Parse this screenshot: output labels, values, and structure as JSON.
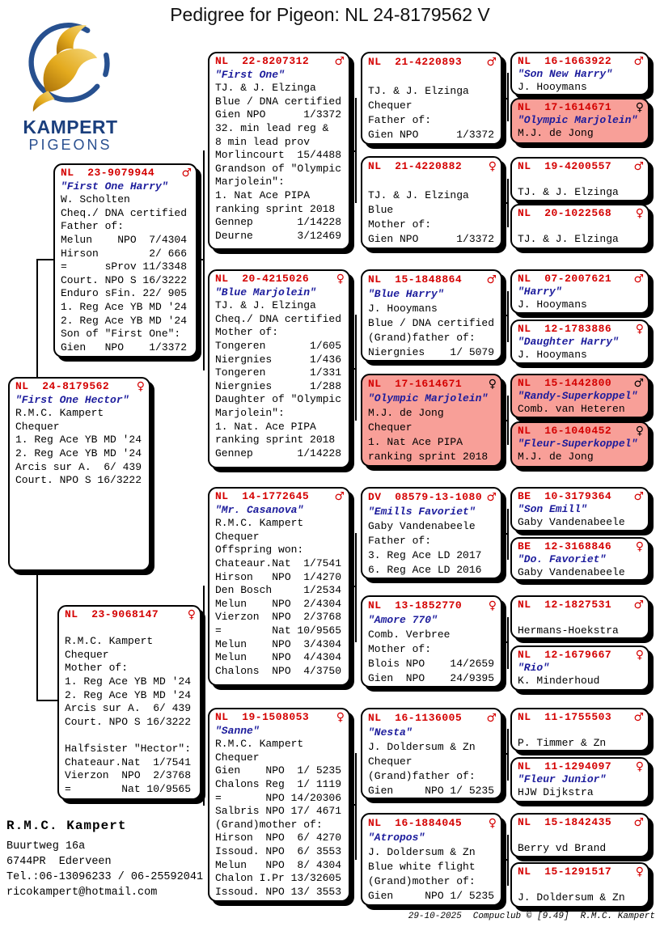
{
  "title": "Pedigree for Pigeon: NL  24-8179562 V",
  "logo": {
    "brand": "KAMPERT",
    "sub": "PIGEONS"
  },
  "colors": {
    "ring_red": "#d40000",
    "name_blue": "#1c1c9c",
    "highlight_pink": "#f89f98",
    "logo_navy": "#1b3f7d",
    "logo_gold": "#e3aa1e"
  },
  "contact": {
    "name": "R.M.C. Kampert",
    "address1": "Buurtweg 16a",
    "address2": "6744PR  Ederveen",
    "phone": "Tel.:06-13096233 / 06-25592041",
    "email": "ricokampert@hotmail.com"
  },
  "footer": {
    "date": "29-10-2025",
    "software": "Compuclub © [9.49]",
    "owner": "R.M.C. Kampert"
  },
  "boxes": [
    {
      "id": "subject",
      "ring": "NL  24-8179562",
      "sex": "female",
      "name": "\"First One Hector\"",
      "highlight": false,
      "lines": [
        "R.M.C. Kampert",
        "Chequer",
        "1. Reg Ace YB MD '24",
        "2. Reg Ace YB MD '24",
        "Arcis sur A.  6/ 439",
        "Court. NPO S 16/3222"
      ]
    },
    {
      "id": "father",
      "ring": "NL  23-9079944",
      "sex": "male",
      "name": "\"First One Harry\"",
      "highlight": false,
      "lines": [
        "W. Scholten",
        "Cheq./ DNA certified",
        "Father of:",
        "Melun    NPO  7/4304",
        "Hirson        2/ 666",
        "=      sProv 11/3348",
        "Court. NPO S 16/3222",
        "Enduro sFin. 22/ 905",
        "1. Reg Ace YB MD '24",
        "2. Reg Ace YB MD '24",
        "Son of \"First One\":",
        "Gien   NPO    1/3372"
      ]
    },
    {
      "id": "mother",
      "ring": "NL  23-9068147",
      "sex": "female",
      "name": "",
      "highlight": false,
      "lines": [
        "R.M.C. Kampert",
        "Chequer",
        "Mother of:",
        "1. Reg Ace YB MD '24",
        "2. Reg Ace YB MD '24",
        "Arcis sur A.  6/ 439",
        "Court. NPO S 16/3222",
        "",
        "Halfsister \"Hector\":",
        "Chateaur.Nat  1/7541",
        "Vierzon  NPO  2/3768",
        "=        Nat 10/9565"
      ]
    },
    {
      "id": "p1",
      "ring": "NL  22-8207312",
      "sex": "male",
      "name": "\"First One\"",
      "highlight": false,
      "lines": [
        "TJ. & J. Elzinga",
        "Blue / DNA certified",
        "Gien NPO      1/3372",
        "32. min lead reg &",
        "8 min lead prov",
        "Morlincourt  15/4488",
        "Grandson of \"Olympic",
        "Marjolein\":",
        "1. Nat Ace PIPA",
        "ranking sprint 2018",
        "Gennep       1/14228",
        "Deurne       3/12469"
      ]
    },
    {
      "id": "p2",
      "ring": "NL  20-4215026",
      "sex": "female",
      "name": "\"Blue Marjolein\"",
      "highlight": false,
      "lines": [
        "TJ. & J. Elzinga",
        "Cheq./ DNA certified",
        "Mother of:",
        "Tongeren       1/605",
        "Niergnies      1/436",
        "Tongeren       1/331",
        "Niergnies      1/288",
        "Daughter of \"Olympic",
        "Marjolein\":",
        "1. Nat. Ace PIPA",
        "ranking sprint 2018",
        "Gennep       1/14228"
      ]
    },
    {
      "id": "p3",
      "ring": "NL  14-1772645",
      "sex": "male",
      "name": "\"Mr. Casanova\"",
      "highlight": false,
      "lines": [
        "R.M.C. Kampert",
        "Chequer",
        "Offspring won:",
        "Chateaur.Nat  1/7541",
        "Hirson   NPO  1/4270",
        "Den Bosch     1/2534",
        "Melun    NPO  2/4304",
        "Vierzon  NPO  2/3768",
        "=        Nat 10/9565",
        "Melun    NPO  3/4304",
        "Melun    NPO  4/4304",
        "Chalons  NPO  4/3750"
      ]
    },
    {
      "id": "p4",
      "ring": "NL  19-1508053",
      "sex": "female",
      "name": "\"Sanne\"",
      "highlight": false,
      "lines": [
        "R.M.C. Kampert",
        "Chequer",
        "Gien    NPO  1/ 5235",
        "Chalons Reg  1/ 1119",
        "=       NPO 14/20306",
        "Salbris NPO 17/ 4671",
        "(Grand)mother of:",
        "Hirson  NPO  6/ 4270",
        "Issoud. NPO  6/ 3553",
        "Melun   NPO  8/ 4304",
        "Chalon I.Pr 13/32605",
        "Issoud. NPO 13/ 3553"
      ]
    },
    {
      "id": "g1",
      "ring": "NL  21-4220893",
      "sex": "male",
      "name": "",
      "highlight": false,
      "lines": [
        "TJ. & J. Elzinga",
        "Chequer",
        "Father of:",
        "Gien NPO      1/3372"
      ]
    },
    {
      "id": "g2",
      "ring": "NL  21-4220882",
      "sex": "female",
      "name": "",
      "highlight": false,
      "lines": [
        "TJ. & J. Elzinga",
        "Blue",
        "Mother of:",
        "Gien NPO      1/3372"
      ]
    },
    {
      "id": "g3",
      "ring": "NL  15-1848864",
      "sex": "male",
      "name": "\"Blue Harry\"",
      "highlight": false,
      "lines": [
        "J. Hooymans",
        "Blue / DNA certified",
        "(Grand)father of:",
        "Niergnies    1/ 5079"
      ]
    },
    {
      "id": "g4",
      "ring": "NL  17-1614671",
      "sex": "female",
      "name": "\"Olympic Marjolein\"",
      "highlight": true,
      "lines": [
        "M.J. de Jong",
        "Chequer",
        "1. Nat Ace PIPA",
        "ranking sprint 2018"
      ]
    },
    {
      "id": "g5",
      "ring": "DV  08579-13-1080",
      "sex": "male",
      "name": "\"Emills Favoriet\"",
      "highlight": false,
      "lines": [
        "Gaby Vandenabeele",
        "Father of:",
        "3. Reg Ace LD 2017",
        "6. Reg Ace LD 2016"
      ]
    },
    {
      "id": "g6",
      "ring": "NL  13-1852770",
      "sex": "female",
      "name": "\"Amore 770\"",
      "highlight": false,
      "lines": [
        "Comb. Verbree",
        "Mother of:",
        "Blois NPO    14/2659",
        "Gien  NPO    24/9395"
      ]
    },
    {
      "id": "g7",
      "ring": "NL  16-1136005",
      "sex": "male",
      "name": "\"Nesta\"",
      "highlight": false,
      "lines": [
        "J. Doldersum & Zn",
        "Chequer",
        "(Grand)father of:",
        "Gien     NPO 1/ 5235"
      ]
    },
    {
      "id": "g8",
      "ring": "NL  16-1884045",
      "sex": "female",
      "name": "\"Atropos\"",
      "highlight": false,
      "lines": [
        "J. Doldersum & Zn",
        "Blue white flight",
        "(Grand)mother of:",
        "Gien     NPO 1/ 5235"
      ]
    },
    {
      "id": "gg1",
      "ring": "NL  16-1663922",
      "sex": "male",
      "name": "\"Son New Harry\"",
      "highlight": false,
      "lines": [
        "J. Hooymans"
      ]
    },
    {
      "id": "gg2",
      "ring": "NL  17-1614671",
      "sex": "female",
      "name": "\"Olympic Marjolein\"",
      "highlight": true,
      "lines": [
        "M.J. de Jong"
      ]
    },
    {
      "id": "gg3",
      "ring": "NL  19-4200557",
      "sex": "male",
      "name": "",
      "highlight": false,
      "lines": [
        "TJ. & J. Elzinga"
      ]
    },
    {
      "id": "gg4",
      "ring": "NL  20-1022568",
      "sex": "female",
      "name": "",
      "highlight": false,
      "lines": [
        "TJ. & J. Elzinga"
      ]
    },
    {
      "id": "gg5",
      "ring": "NL  07-2007621",
      "sex": "male",
      "name": "\"Harry\"",
      "highlight": false,
      "lines": [
        "J. Hooymans"
      ]
    },
    {
      "id": "gg6",
      "ring": "NL  12-1783886",
      "sex": "female",
      "name": "\"Daughter Harry\"",
      "highlight": false,
      "lines": [
        "J. Hooymans"
      ]
    },
    {
      "id": "gg7",
      "ring": "NL  15-1442800",
      "sex": "male",
      "name": "\"Randy-Superkoppel\"",
      "highlight": true,
      "lines": [
        "Comb. van Heteren"
      ]
    },
    {
      "id": "gg8",
      "ring": "NL  16-1040452",
      "sex": "female",
      "name": "\"Fleur-Superkoppel\"",
      "highlight": true,
      "lines": [
        "M.J. de Jong"
      ]
    },
    {
      "id": "gg9",
      "ring": "BE  10-3179364",
      "sex": "male",
      "name": "\"Son Emill\"",
      "highlight": false,
      "lines": [
        "Gaby Vandenabeele"
      ]
    },
    {
      "id": "gg10",
      "ring": "BE  12-3168846",
      "sex": "female",
      "name": "\"Do. Favoriet\"",
      "highlight": false,
      "lines": [
        "Gaby Vandenabeele"
      ]
    },
    {
      "id": "gg11",
      "ring": "NL  12-1827531",
      "sex": "male",
      "name": "",
      "highlight": false,
      "lines": [
        "Hermans-Hoekstra"
      ]
    },
    {
      "id": "gg12",
      "ring": "NL  12-1679667",
      "sex": "female",
      "name": "\"Rio\"",
      "highlight": false,
      "lines": [
        "K. Minderhoud"
      ]
    },
    {
      "id": "gg13",
      "ring": "NL  11-1755503",
      "sex": "male",
      "name": "",
      "highlight": false,
      "lines": [
        "P. Timmer & Zn"
      ]
    },
    {
      "id": "gg14",
      "ring": "NL  11-1294097",
      "sex": "female",
      "name": "\"Fleur Junior\"",
      "highlight": false,
      "lines": [
        "HJW Dijkstra"
      ]
    },
    {
      "id": "gg15",
      "ring": "NL  15-1842435",
      "sex": "male",
      "name": "",
      "highlight": false,
      "lines": [
        "Berry vd Brand"
      ]
    },
    {
      "id": "gg16",
      "ring": "NL  15-1291517",
      "sex": "female",
      "name": "",
      "highlight": false,
      "lines": [
        "J. Doldersum & Zn"
      ]
    }
  ]
}
